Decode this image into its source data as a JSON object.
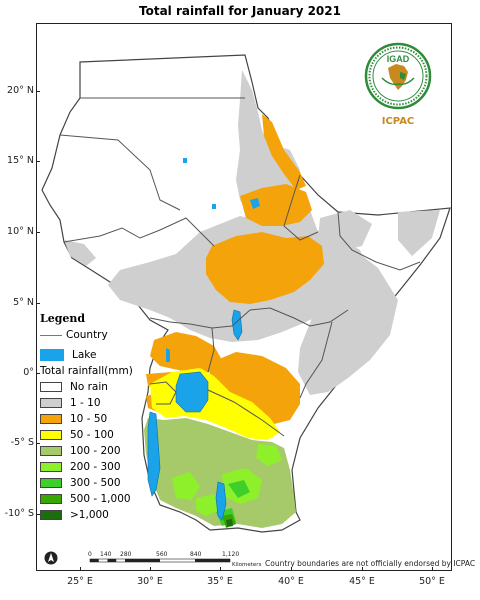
{
  "title": "Total rainfall for January 2021",
  "axes": {
    "lat_labels": [
      "20° N",
      "15° N",
      "10° N",
      "5° N",
      "0°",
      "-5° S",
      "-10° S"
    ],
    "lon_labels": [
      "25° E",
      "30° E",
      "35° E",
      "40° E",
      "45° E",
      "50° E"
    ]
  },
  "legend": {
    "title": "Legend",
    "country_label": "Country",
    "lake_label": "Lake",
    "rainfall_title": "Total rainfall(mm)",
    "classes": [
      {
        "label": "No rain",
        "color": "#ffffff"
      },
      {
        "label": "1 - 10",
        "color": "#cfcfcf"
      },
      {
        "label": "10 - 50",
        "color": "#f5a30a"
      },
      {
        "label": "50 - 100",
        "color": "#ffff00"
      },
      {
        "label": "100 - 200",
        "color": "#a6c96a"
      },
      {
        "label": "200 - 300",
        "color": "#8ef02b"
      },
      {
        "label": "300 - 500",
        "color": "#3fcf2a"
      },
      {
        "label": "500 - 1,000",
        "color": "#38a800"
      },
      {
        "label": ">1,000",
        "color": "#1e6b10"
      }
    ],
    "lake_color": "#1aa3e8",
    "country_color": "#777777"
  },
  "logo": {
    "text": "IGAD",
    "caption": "ICPAC",
    "ring_color": "#2e8b3a",
    "accent_color": "#c8891e"
  },
  "scale": {
    "ticks": [
      "0",
      "140",
      "280",
      "560",
      "840",
      "1,120"
    ],
    "unit": "Kilometers"
  },
  "disclaimer": "Country boundaries are not officially endorsed by ICPAC",
  "north_icon": "north-arrow-icon"
}
